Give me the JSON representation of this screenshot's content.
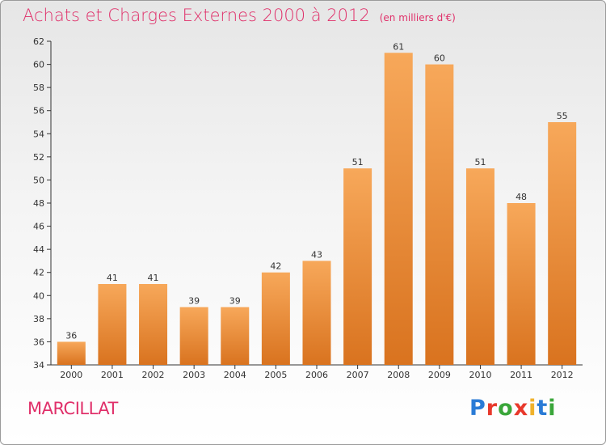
{
  "header": {
    "title": "Achats et Charges Externes 2000 à 2012",
    "unit": "(en milliers d'€)"
  },
  "footer": {
    "commune": "MARCILLAT",
    "logo": "Proxiti"
  },
  "colors": {
    "title": "#e0306a",
    "bar_light": "#f7a85a",
    "bar_dark": "#d9731f",
    "logo_letters": [
      "#2a7bd6",
      "#e8392c",
      "#3aa63a",
      "#e8392c",
      "#f0b22c",
      "#2a7bd6",
      "#3aa63a"
    ]
  },
  "chart_data": {
    "type": "bar",
    "title": "Achats et Charges Externes 2000 à 2012",
    "subtitle": "(en milliers d'€)",
    "categories": [
      "2000",
      "2001",
      "2002",
      "2003",
      "2004",
      "2005",
      "2006",
      "2007",
      "2008",
      "2009",
      "2010",
      "2011",
      "2012"
    ],
    "values": [
      36,
      41,
      41,
      39,
      39,
      42,
      43,
      51,
      61,
      60,
      51,
      48,
      55
    ],
    "ylim": [
      34,
      62
    ],
    "yticks": [
      34,
      36,
      38,
      40,
      42,
      44,
      46,
      48,
      50,
      52,
      54,
      56,
      58,
      60,
      62
    ],
    "grid": false,
    "data_labels": true
  }
}
